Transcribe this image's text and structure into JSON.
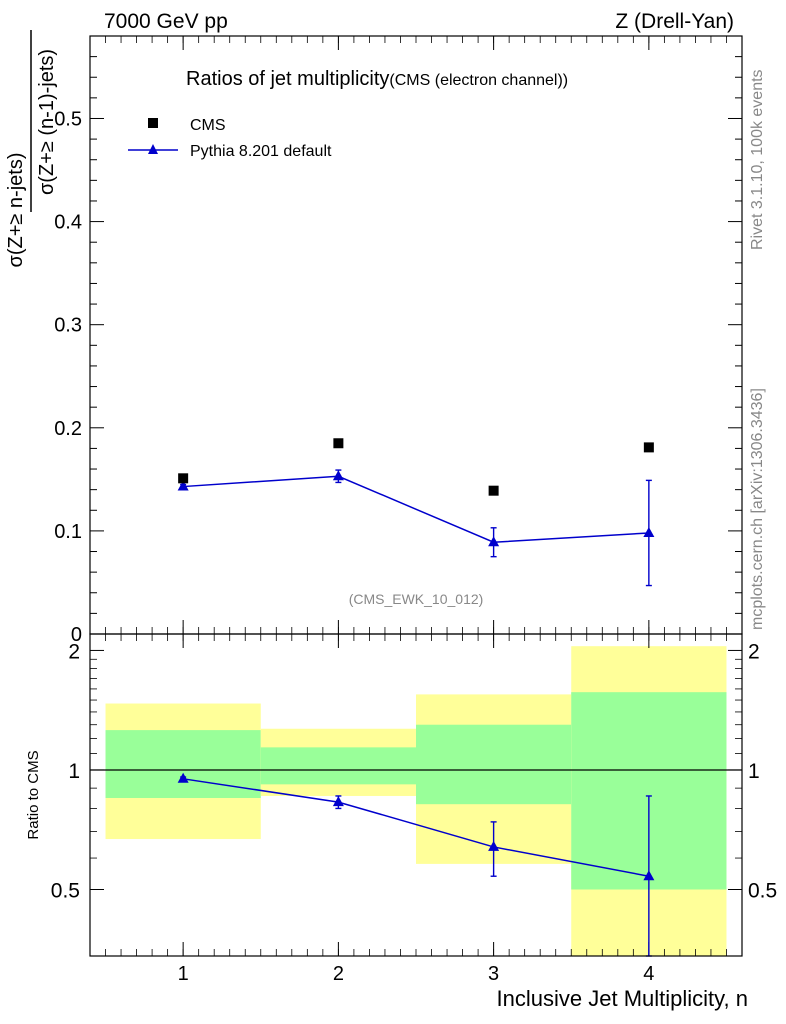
{
  "header": {
    "left": "7000 GeV pp",
    "right": "Z (Drell-Yan)"
  },
  "side_text": {
    "rivet": "Rivet 3.1.10,  100k events",
    "mcplots": "mcplots.cern.ch [arXiv:1306.3436]"
  },
  "colors": {
    "mc": "#0000cc",
    "band_inner": "#99ff99",
    "band_outer": "#ffff99",
    "data": "#000000"
  },
  "chart_data": [
    {
      "type": "scatter",
      "panel": "main",
      "title": "Ratios of jet multiplicity",
      "subtitle": "(CMS (electron channel))",
      "analysis_label": "(CMS_EWK_10_012)",
      "ylabel_num": "σ(Z+≥ n-jets)",
      "ylabel_den": "σ(Z+≥ (n-1)-jets)",
      "xlim": [
        0.4,
        4.6
      ],
      "ylim": [
        0,
        0.58
      ],
      "yticks": [
        0,
        0.1,
        0.2,
        0.3,
        0.4,
        0.5
      ],
      "ytick_labels": [
        "0",
        "0.1",
        "0.2",
        "0.3",
        "0.4",
        "0.5"
      ],
      "legend_position": "top-left",
      "series": [
        {
          "name": "CMS",
          "marker": "square",
          "x": [
            1,
            2,
            3,
            4
          ],
          "y": [
            0.151,
            0.185,
            0.139,
            0.181
          ]
        },
        {
          "name": "Pythia 8.201 default",
          "marker": "triangle",
          "x": [
            1,
            2,
            3,
            4
          ],
          "y": [
            0.143,
            0.153,
            0.089,
            0.098
          ],
          "err_low": [
            0.002,
            0.006,
            0.014,
            0.051
          ],
          "err_high": [
            0.002,
            0.006,
            0.014,
            0.051
          ]
        }
      ]
    },
    {
      "type": "scatter",
      "panel": "ratio",
      "ylabel": "Ratio to CMS",
      "xlabel": "Inclusive Jet Multiplicity, n",
      "xlim": [
        0.4,
        4.6
      ],
      "ylim": [
        0.34,
        2.2
      ],
      "xticks": [
        1,
        2,
        3,
        4
      ],
      "xtick_labels": [
        "1",
        "2",
        "3",
        "4"
      ],
      "yticks": [
        0.5,
        1,
        2
      ],
      "ytick_labels": [
        "0.5",
        "1",
        "2"
      ],
      "bands": [
        {
          "x0": 0.5,
          "x1": 1.5,
          "inner": [
            0.85,
            1.26
          ],
          "outer": [
            0.67,
            1.47
          ]
        },
        {
          "x0": 1.5,
          "x1": 2.5,
          "inner": [
            0.92,
            1.14
          ],
          "outer": [
            0.86,
            1.27
          ]
        },
        {
          "x0": 2.5,
          "x1": 3.5,
          "inner": [
            0.82,
            1.3
          ],
          "outer": [
            0.58,
            1.55
          ]
        },
        {
          "x0": 3.5,
          "x1": 4.5,
          "inner": [
            0.5,
            1.57
          ],
          "outer": [
            0.34,
            2.05
          ]
        }
      ],
      "series": [
        {
          "name": "Pythia 8.201 default",
          "x": [
            1,
            2,
            3,
            4
          ],
          "y": [
            0.95,
            0.83,
            0.64,
            0.54
          ],
          "err_low": [
            0.01,
            0.03,
            0.1,
            0.2
          ],
          "err_high": [
            0.01,
            0.03,
            0.1,
            0.32
          ]
        }
      ]
    }
  ]
}
